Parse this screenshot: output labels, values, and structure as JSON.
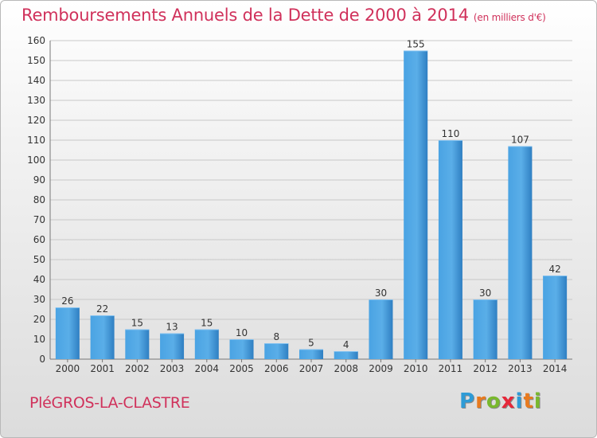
{
  "title": "Remboursements Annuels de la Dette de 2000 à 2014",
  "unit": "(en milliers d'€)",
  "commune": "PléGROS-LA-CLASTRE",
  "logo": {
    "letters": [
      "P",
      "r",
      "o",
      "x",
      "i",
      "t",
      "i"
    ],
    "colors": [
      "#2e9bd6",
      "#e87a1e",
      "#79b82e",
      "#e6283a",
      "#2e9bd6",
      "#e87a1e",
      "#79b82e"
    ]
  },
  "chart_data": {
    "type": "bar",
    "categories": [
      "2000",
      "2001",
      "2002",
      "2003",
      "2004",
      "2005",
      "2006",
      "2007",
      "2008",
      "2009",
      "2010",
      "2011",
      "2012",
      "2013",
      "2014"
    ],
    "values": [
      26,
      22,
      15,
      13,
      15,
      10,
      8,
      5,
      4,
      30,
      155,
      110,
      30,
      107,
      42
    ],
    "ylim": [
      0,
      160
    ],
    "yticks": [
      0,
      10,
      20,
      30,
      40,
      50,
      60,
      70,
      80,
      90,
      100,
      110,
      120,
      130,
      140,
      150,
      160
    ],
    "grid": true,
    "bar_color": "#3a8fd2"
  }
}
